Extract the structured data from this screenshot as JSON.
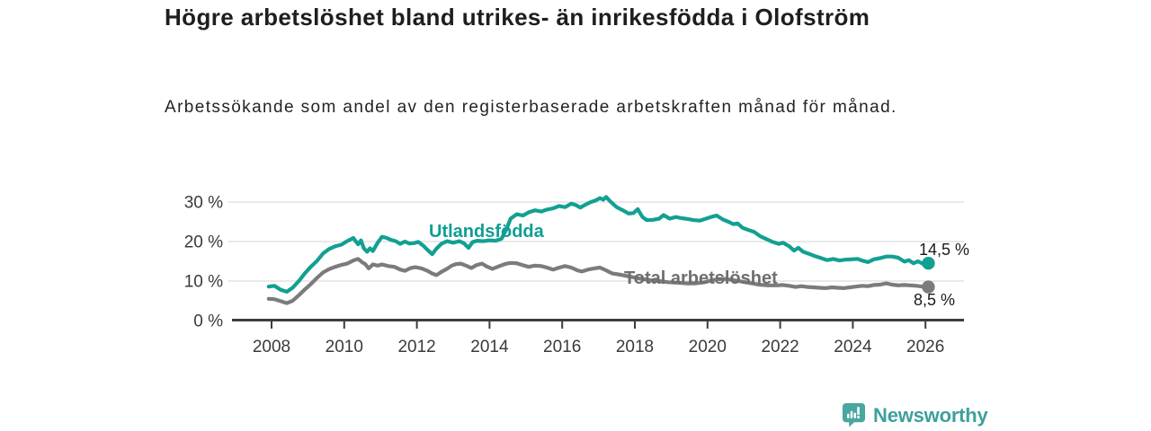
{
  "chart_data": {
    "type": "line",
    "title": "Högre arbetslöshet bland utrikes- än inrikesfödda i Olofström",
    "subtitle": "Arbetssökande som andel av den registerbaserade arbetskraften månad för månad.",
    "unit": "%",
    "grid": "horizontal",
    "legend_position": "inline-labels",
    "xlim": [
      2007.8,
      2027.1
    ],
    "ylim": [
      0,
      33
    ],
    "x_tick_years": [
      2008,
      2010,
      2012,
      2014,
      2016,
      2018,
      2020,
      2022,
      2024,
      2026
    ],
    "y_ticks": [
      {
        "value": 0,
        "label": "0 %"
      },
      {
        "value": 10,
        "label": "10 %"
      },
      {
        "value": 20,
        "label": "20 %"
      },
      {
        "value": 30,
        "label": "30 %"
      }
    ],
    "series": [
      {
        "name": "Utlandsfödda",
        "color": "#12a092",
        "end_value": 14.5,
        "end_label": "14,5 %",
        "points": [
          [
            2007.92,
            8.6
          ],
          [
            2008.08,
            8.8
          ],
          [
            2008.25,
            7.8
          ],
          [
            2008.42,
            7.3
          ],
          [
            2008.58,
            8.3
          ],
          [
            2008.75,
            10.0
          ],
          [
            2008.92,
            12.0
          ],
          [
            2009.08,
            13.6
          ],
          [
            2009.25,
            15.1
          ],
          [
            2009.42,
            17.0
          ],
          [
            2009.58,
            18.1
          ],
          [
            2009.75,
            18.8
          ],
          [
            2009.92,
            19.2
          ],
          [
            2010.08,
            20.1
          ],
          [
            2010.25,
            20.9
          ],
          [
            2010.38,
            19.3
          ],
          [
            2010.46,
            20.3
          ],
          [
            2010.54,
            18.3
          ],
          [
            2010.63,
            17.4
          ],
          [
            2010.71,
            18.3
          ],
          [
            2010.79,
            17.6
          ],
          [
            2010.92,
            19.7
          ],
          [
            2011.04,
            21.2
          ],
          [
            2011.17,
            20.9
          ],
          [
            2011.29,
            20.4
          ],
          [
            2011.42,
            20.1
          ],
          [
            2011.54,
            19.4
          ],
          [
            2011.67,
            20.0
          ],
          [
            2011.79,
            19.5
          ],
          [
            2011.92,
            19.6
          ],
          [
            2012.04,
            19.9
          ],
          [
            2012.17,
            19.0
          ],
          [
            2012.29,
            17.9
          ],
          [
            2012.42,
            16.8
          ],
          [
            2012.54,
            18.2
          ],
          [
            2012.67,
            19.4
          ],
          [
            2012.83,
            20.1
          ],
          [
            2013.0,
            19.7
          ],
          [
            2013.17,
            20.1
          ],
          [
            2013.29,
            19.6
          ],
          [
            2013.42,
            18.4
          ],
          [
            2013.54,
            19.9
          ],
          [
            2013.67,
            20.2
          ],
          [
            2013.83,
            20.1
          ],
          [
            2014.0,
            20.3
          ],
          [
            2014.17,
            20.2
          ],
          [
            2014.33,
            20.7
          ],
          [
            2014.46,
            23.0
          ],
          [
            2014.58,
            25.8
          ],
          [
            2014.75,
            26.9
          ],
          [
            2014.92,
            26.6
          ],
          [
            2015.08,
            27.4
          ],
          [
            2015.25,
            27.9
          ],
          [
            2015.42,
            27.6
          ],
          [
            2015.58,
            28.1
          ],
          [
            2015.75,
            28.4
          ],
          [
            2015.92,
            29.0
          ],
          [
            2016.08,
            28.7
          ],
          [
            2016.25,
            29.6
          ],
          [
            2016.38,
            29.2
          ],
          [
            2016.5,
            28.6
          ],
          [
            2016.63,
            29.3
          ],
          [
            2016.79,
            30.0
          ],
          [
            2016.92,
            30.4
          ],
          [
            2017.04,
            31.0
          ],
          [
            2017.13,
            30.6
          ],
          [
            2017.21,
            31.3
          ],
          [
            2017.33,
            30.1
          ],
          [
            2017.5,
            28.7
          ],
          [
            2017.67,
            27.9
          ],
          [
            2017.83,
            27.1
          ],
          [
            2017.96,
            27.2
          ],
          [
            2018.08,
            28.2
          ],
          [
            2018.21,
            26.2
          ],
          [
            2018.33,
            25.4
          ],
          [
            2018.5,
            25.5
          ],
          [
            2018.67,
            25.8
          ],
          [
            2018.79,
            26.7
          ],
          [
            2018.96,
            25.8
          ],
          [
            2019.13,
            26.2
          ],
          [
            2019.29,
            25.9
          ],
          [
            2019.46,
            25.7
          ],
          [
            2019.63,
            25.4
          ],
          [
            2019.79,
            25.3
          ],
          [
            2019.96,
            25.8
          ],
          [
            2020.13,
            26.3
          ],
          [
            2020.25,
            26.6
          ],
          [
            2020.42,
            25.6
          ],
          [
            2020.58,
            25.0
          ],
          [
            2020.71,
            24.4
          ],
          [
            2020.83,
            24.6
          ],
          [
            2020.96,
            23.5
          ],
          [
            2021.13,
            22.9
          ],
          [
            2021.29,
            22.4
          ],
          [
            2021.46,
            21.3
          ],
          [
            2021.63,
            20.6
          ],
          [
            2021.79,
            19.9
          ],
          [
            2021.96,
            19.4
          ],
          [
            2022.08,
            19.7
          ],
          [
            2022.25,
            18.8
          ],
          [
            2022.38,
            17.7
          ],
          [
            2022.5,
            18.4
          ],
          [
            2022.63,
            17.4
          ],
          [
            2022.79,
            16.9
          ],
          [
            2022.96,
            16.3
          ],
          [
            2023.13,
            15.8
          ],
          [
            2023.29,
            15.3
          ],
          [
            2023.46,
            15.6
          ],
          [
            2023.63,
            15.2
          ],
          [
            2023.79,
            15.4
          ],
          [
            2023.96,
            15.5
          ],
          [
            2024.13,
            15.6
          ],
          [
            2024.29,
            15.1
          ],
          [
            2024.42,
            14.8
          ],
          [
            2024.58,
            15.5
          ],
          [
            2024.75,
            15.8
          ],
          [
            2024.92,
            16.2
          ],
          [
            2025.08,
            16.2
          ],
          [
            2025.25,
            15.9
          ],
          [
            2025.42,
            14.9
          ],
          [
            2025.54,
            15.3
          ],
          [
            2025.67,
            14.5
          ],
          [
            2025.79,
            15.0
          ],
          [
            2025.92,
            14.4
          ],
          [
            2026.08,
            14.5
          ]
        ]
      },
      {
        "name": "Total arbetslöshet",
        "color": "#7b7b7b",
        "end_value": 8.5,
        "end_label": "8,5 %",
        "points": [
          [
            2007.92,
            5.5
          ],
          [
            2008.08,
            5.4
          ],
          [
            2008.25,
            4.9
          ],
          [
            2008.42,
            4.4
          ],
          [
            2008.58,
            5.0
          ],
          [
            2008.75,
            6.4
          ],
          [
            2008.92,
            7.9
          ],
          [
            2009.08,
            9.2
          ],
          [
            2009.25,
            10.8
          ],
          [
            2009.42,
            12.2
          ],
          [
            2009.58,
            13.0
          ],
          [
            2009.75,
            13.6
          ],
          [
            2009.92,
            14.1
          ],
          [
            2010.08,
            14.4
          ],
          [
            2010.25,
            15.2
          ],
          [
            2010.38,
            15.6
          ],
          [
            2010.5,
            14.7
          ],
          [
            2010.58,
            14.3
          ],
          [
            2010.67,
            13.2
          ],
          [
            2010.79,
            14.2
          ],
          [
            2010.92,
            13.9
          ],
          [
            2011.04,
            14.2
          ],
          [
            2011.21,
            13.8
          ],
          [
            2011.38,
            13.6
          ],
          [
            2011.54,
            12.9
          ],
          [
            2011.67,
            12.6
          ],
          [
            2011.83,
            13.3
          ],
          [
            2011.96,
            13.5
          ],
          [
            2012.13,
            13.2
          ],
          [
            2012.29,
            12.6
          ],
          [
            2012.42,
            11.9
          ],
          [
            2012.54,
            11.5
          ],
          [
            2012.67,
            12.3
          ],
          [
            2012.83,
            13.1
          ],
          [
            2012.96,
            13.9
          ],
          [
            2013.08,
            14.3
          ],
          [
            2013.21,
            14.4
          ],
          [
            2013.38,
            13.8
          ],
          [
            2013.5,
            13.3
          ],
          [
            2013.63,
            14.0
          ],
          [
            2013.79,
            14.4
          ],
          [
            2013.92,
            13.7
          ],
          [
            2014.08,
            13.1
          ],
          [
            2014.25,
            13.7
          ],
          [
            2014.42,
            14.3
          ],
          [
            2014.58,
            14.6
          ],
          [
            2014.75,
            14.5
          ],
          [
            2014.92,
            14.0
          ],
          [
            2015.08,
            13.6
          ],
          [
            2015.25,
            13.9
          ],
          [
            2015.42,
            13.8
          ],
          [
            2015.58,
            13.4
          ],
          [
            2015.75,
            12.9
          ],
          [
            2015.92,
            13.4
          ],
          [
            2016.08,
            13.8
          ],
          [
            2016.25,
            13.4
          ],
          [
            2016.42,
            12.7
          ],
          [
            2016.54,
            12.4
          ],
          [
            2016.71,
            12.9
          ],
          [
            2016.88,
            13.2
          ],
          [
            2017.04,
            13.4
          ],
          [
            2017.21,
            12.7
          ],
          [
            2017.38,
            11.9
          ],
          [
            2017.54,
            11.7
          ],
          [
            2017.71,
            11.4
          ],
          [
            2017.92,
            11.0
          ],
          [
            2018.17,
            10.6
          ],
          [
            2018.42,
            10.2
          ],
          [
            2018.67,
            10.0
          ],
          [
            2018.92,
            9.7
          ],
          [
            2019.17,
            9.6
          ],
          [
            2019.42,
            9.4
          ],
          [
            2019.67,
            9.4
          ],
          [
            2019.92,
            9.7
          ],
          [
            2020.17,
            10.3
          ],
          [
            2020.42,
            10.6
          ],
          [
            2020.67,
            10.3
          ],
          [
            2020.92,
            9.9
          ],
          [
            2021.17,
            9.5
          ],
          [
            2021.42,
            9.1
          ],
          [
            2021.67,
            8.9
          ],
          [
            2021.92,
            8.9
          ],
          [
            2022.08,
            9.0
          ],
          [
            2022.25,
            8.8
          ],
          [
            2022.42,
            8.5
          ],
          [
            2022.58,
            8.7
          ],
          [
            2022.75,
            8.5
          ],
          [
            2022.92,
            8.4
          ],
          [
            2023.08,
            8.3
          ],
          [
            2023.25,
            8.2
          ],
          [
            2023.42,
            8.4
          ],
          [
            2023.58,
            8.3
          ],
          [
            2023.75,
            8.2
          ],
          [
            2023.92,
            8.4
          ],
          [
            2024.08,
            8.6
          ],
          [
            2024.25,
            8.8
          ],
          [
            2024.42,
            8.7
          ],
          [
            2024.58,
            9.0
          ],
          [
            2024.75,
            9.1
          ],
          [
            2024.92,
            9.4
          ],
          [
            2025.08,
            9.1
          ],
          [
            2025.25,
            8.9
          ],
          [
            2025.42,
            9.0
          ],
          [
            2025.58,
            8.9
          ],
          [
            2025.75,
            8.8
          ],
          [
            2025.92,
            8.6
          ],
          [
            2026.08,
            8.5
          ]
        ]
      }
    ]
  },
  "branding": {
    "name": "Newsworthy",
    "icon": "newsworthy-bubble-chart-icon",
    "color": "#3ea09b"
  }
}
